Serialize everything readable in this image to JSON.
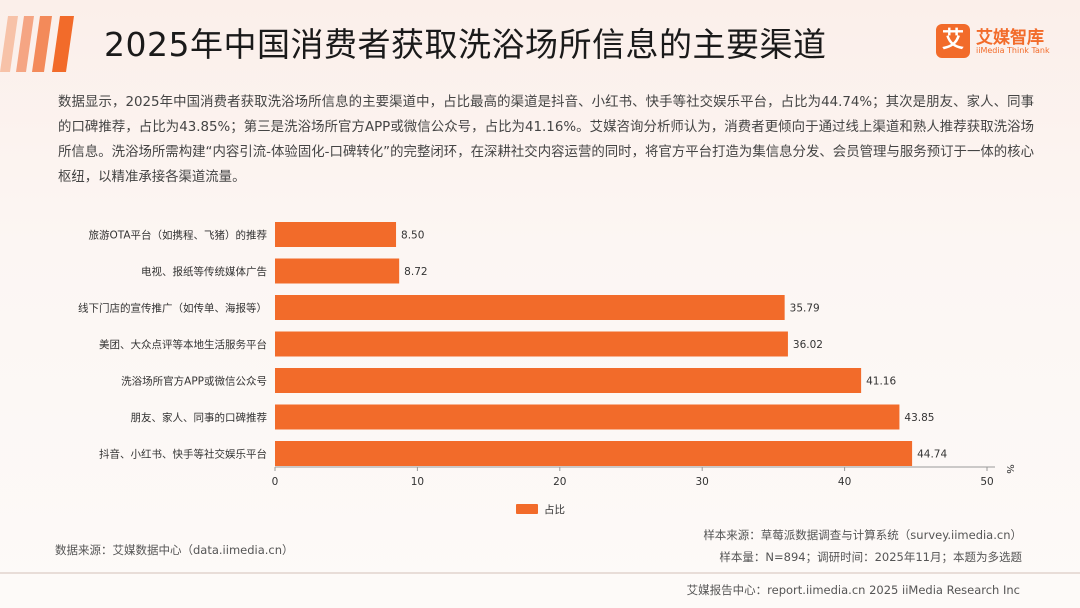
{
  "header": {
    "title": "2025年中国消费者获取洗浴场所信息的主要渠道",
    "logo_mark": "艾",
    "logo_cn": "艾媒智库",
    "logo_en": "iiMedia Think Tank"
  },
  "summary": "数据显示，2025年中国消费者获取洗浴场所信息的主要渠道中，占比最高的渠道是抖音、小红书、快手等社交娱乐平台，占比为44.74%；其次是朋友、家人、同事的口碑推荐，占比为43.85%；第三是洗浴场所官方APP或微信公众号，占比为41.16%。艾媒咨询分析师认为，消费者更倾向于通过线上渠道和熟人推荐获取洗浴场所信息。洗浴场所需构建“内容引流-体验固化-口碑转化”的完整闭环，在深耕社交内容运营的同时，将官方平台打造为集信息分发、会员管理与服务预订于一体的核心枢纽，以精准承接各渠道流量。",
  "chart_data": {
    "type": "bar",
    "orientation": "horizontal",
    "categories": [
      "旅游OTA平台（如携程、飞猪）的推荐",
      "电视、报纸等传统媒体广告",
      "线下门店的宣传推广（如传单、海报等）",
      "美团、大众点评等本地生活服务平台",
      "洗浴场所官方APP或微信公众号",
      "朋友、家人、同事的口碑推荐",
      "抖音、小红书、快手等社交娱乐平台"
    ],
    "series": [
      {
        "name": "占比",
        "values": [
          8.5,
          8.72,
          35.79,
          36.02,
          41.16,
          43.85,
          44.74
        ],
        "color": "#f26b2a"
      }
    ],
    "value_labels": [
      "8.50",
      "8.72",
      "35.79",
      "36.02",
      "41.16",
      "43.85",
      "44.74"
    ],
    "xlim": [
      0,
      50
    ],
    "x_ticks": [
      0,
      10,
      20,
      30,
      40,
      50
    ],
    "x_tick_labels": [
      "0",
      "10",
      "20",
      "30",
      "40",
      "50"
    ],
    "unit": "%",
    "grid": false,
    "legend": "bottom-center"
  },
  "sources": {
    "left": "数据来源：艾媒数据中心（data.iimedia.cn）",
    "right_line1": "样本来源：草莓派数据调查与计算系统（survey.iimedia.cn）",
    "right_line2": "样本量：N=894；调研时间：2025年11月；本题为多选题"
  },
  "footer": "艾媒报告中心：report.iimedia.cn  2025 iiMedia Research Inc",
  "colors": {
    "accent": "#f26b2a",
    "stripe": "#f5a07a"
  }
}
